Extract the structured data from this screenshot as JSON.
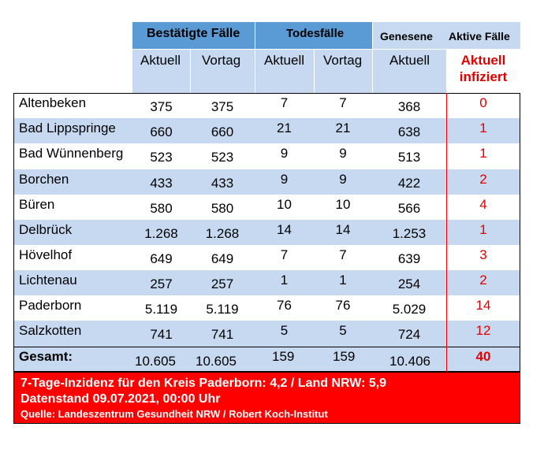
{
  "header": {
    "group1": "Bestätigte Fälle",
    "group2": "Todesfälle",
    "group3": "Genesene",
    "group4": "Aktive Fälle",
    "sub1": "Aktuell",
    "sub2": "Vortag",
    "sub3": "Aktuell",
    "sub4": "Vortag",
    "sub5": "Aktuell",
    "sub6_line1": "Aktuell",
    "sub6_line2": "infiziert"
  },
  "rows": [
    {
      "name": "Altenbeken",
      "conf_now": "375",
      "conf_prev": "375",
      "death_now": "7",
      "death_prev": "7",
      "recovered": "368",
      "active": "0"
    },
    {
      "name": "Bad Lippspringe",
      "conf_now": "660",
      "conf_prev": "660",
      "death_now": "21",
      "death_prev": "21",
      "recovered": "638",
      "active": "1"
    },
    {
      "name": "Bad Wünnenberg",
      "conf_now": "523",
      "conf_prev": "523",
      "death_now": "9",
      "death_prev": "9",
      "recovered": "513",
      "active": "1"
    },
    {
      "name": "Borchen",
      "conf_now": "433",
      "conf_prev": "433",
      "death_now": "9",
      "death_prev": "9",
      "recovered": "422",
      "active": "2"
    },
    {
      "name": "Büren",
      "conf_now": "580",
      "conf_prev": "580",
      "death_now": "10",
      "death_prev": "10",
      "recovered": "566",
      "active": "4"
    },
    {
      "name": "Delbrück",
      "conf_now": "1.268",
      "conf_prev": "1.268",
      "death_now": "14",
      "death_prev": "14",
      "recovered": "1.253",
      "active": "1"
    },
    {
      "name": "Hövelhof",
      "conf_now": "649",
      "conf_prev": "649",
      "death_now": "7",
      "death_prev": "7",
      "recovered": "639",
      "active": "3"
    },
    {
      "name": "Lichtenau",
      "conf_now": "257",
      "conf_prev": "257",
      "death_now": "1",
      "death_prev": "1",
      "recovered": "254",
      "active": "2"
    },
    {
      "name": "Paderborn",
      "conf_now": "5.119",
      "conf_prev": "5.119",
      "death_now": "76",
      "death_prev": "76",
      "recovered": "5.029",
      "active": "14"
    },
    {
      "name": "Salzkotten",
      "conf_now": "741",
      "conf_prev": "741",
      "death_now": "5",
      "death_prev": "5",
      "recovered": "724",
      "active": "12"
    }
  ],
  "total": {
    "name": "Gesamt:",
    "conf_now": "10.605",
    "conf_prev": "10.605",
    "death_now": "159",
    "death_prev": "159",
    "recovered": "10.406",
    "active": "40"
  },
  "footer": {
    "line1": "7-Tage-Inzidenz für den Kreis Paderborn: 4,2 / Land NRW: 5,9",
    "line2": "Datenstand 09.07.2021, 00:00 Uhr",
    "line3": "Quelle: Landeszentrum Gesundheit NRW / Robert Koch-Institut"
  },
  "colors": {
    "header_dark": "#5b9bd5",
    "header_light": "#c6d9f1",
    "row_alt": "#c6d9f1",
    "accent_red": "#ff0000"
  }
}
